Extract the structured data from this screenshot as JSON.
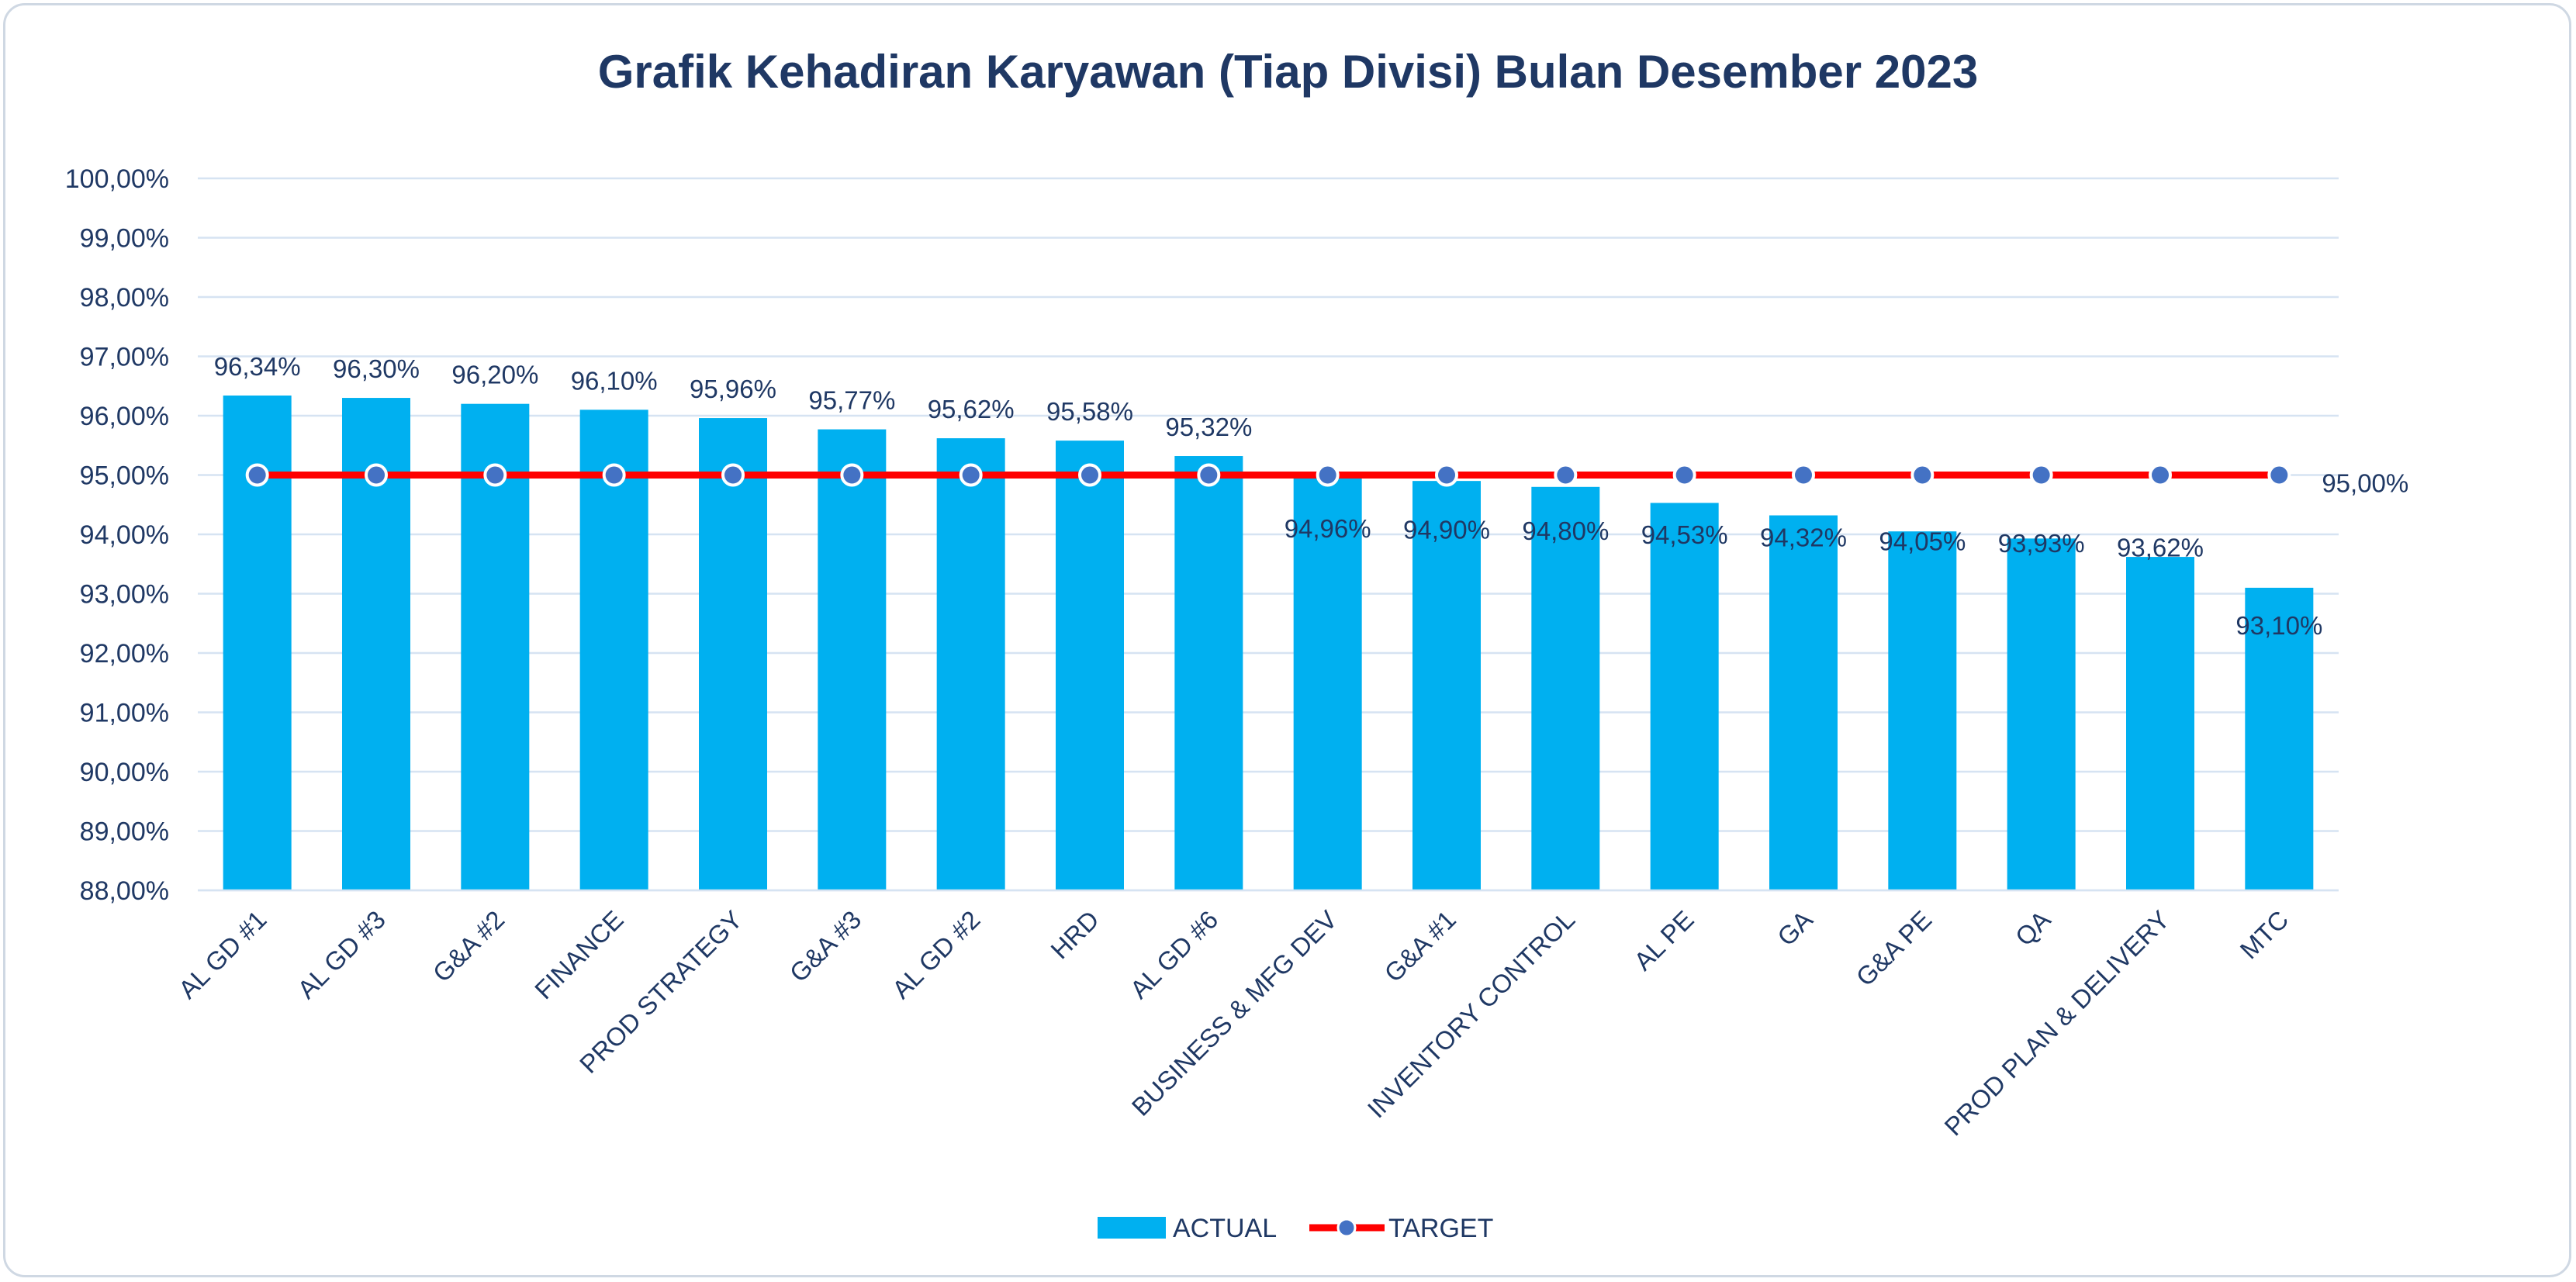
{
  "chart_data": {
    "type": "bar",
    "title": "Grafik Kehadiran Karyawan (Tiap Divisi) Bulan Desember 2023",
    "xlabel": "",
    "ylabel": "",
    "ylim": [
      88,
      100
    ],
    "y_ticks": [
      "88,00%",
      "89,00%",
      "90,00%",
      "91,00%",
      "92,00%",
      "93,00%",
      "94,00%",
      "95,00%",
      "96,00%",
      "97,00%",
      "98,00%",
      "99,00%",
      "100,00%"
    ],
    "y_tick_values": [
      88,
      89,
      90,
      91,
      92,
      93,
      94,
      95,
      96,
      97,
      98,
      99,
      100
    ],
    "grid": true,
    "legend_position": "bottom",
    "categories": [
      "AL GD #1",
      "AL GD #3",
      "G&A #2",
      "FINANCE",
      "PROD STRATEGY",
      "G&A #3",
      "AL GD #2",
      "HRD",
      "AL GD #6",
      "BUSINESS & MFG DEV",
      "G&A #1",
      "INVENTORY CONTROL",
      "AL PE",
      "GA",
      "G&A PE",
      "QA",
      "PROD PLAN & DELIVERY",
      "MTC"
    ],
    "series": [
      {
        "name": "ACTUAL",
        "type": "bar",
        "color": "#00b0f0",
        "values": [
          96.34,
          96.3,
          96.2,
          96.1,
          95.96,
          95.77,
          95.62,
          95.58,
          95.32,
          94.96,
          94.9,
          94.8,
          94.53,
          94.32,
          94.05,
          93.93,
          93.62,
          93.1
        ],
        "labels": [
          "96,34%",
          "96,30%",
          "96,20%",
          "96,10%",
          "95,96%",
          "95,77%",
          "95,62%",
          "95,58%",
          "95,32%",
          "94,96%",
          "94,90%",
          "94,80%",
          "94,53%",
          "94,32%",
          "94,05%",
          "93,93%",
          "93,62%",
          "93,10%"
        ]
      },
      {
        "name": "TARGET",
        "type": "line",
        "color": "#ff0000",
        "marker_color": "#4472c4",
        "values": [
          95,
          95,
          95,
          95,
          95,
          95,
          95,
          95,
          95,
          95,
          95,
          95,
          95,
          95,
          95,
          95,
          95,
          95
        ],
        "end_label": "95,00%"
      }
    ]
  }
}
